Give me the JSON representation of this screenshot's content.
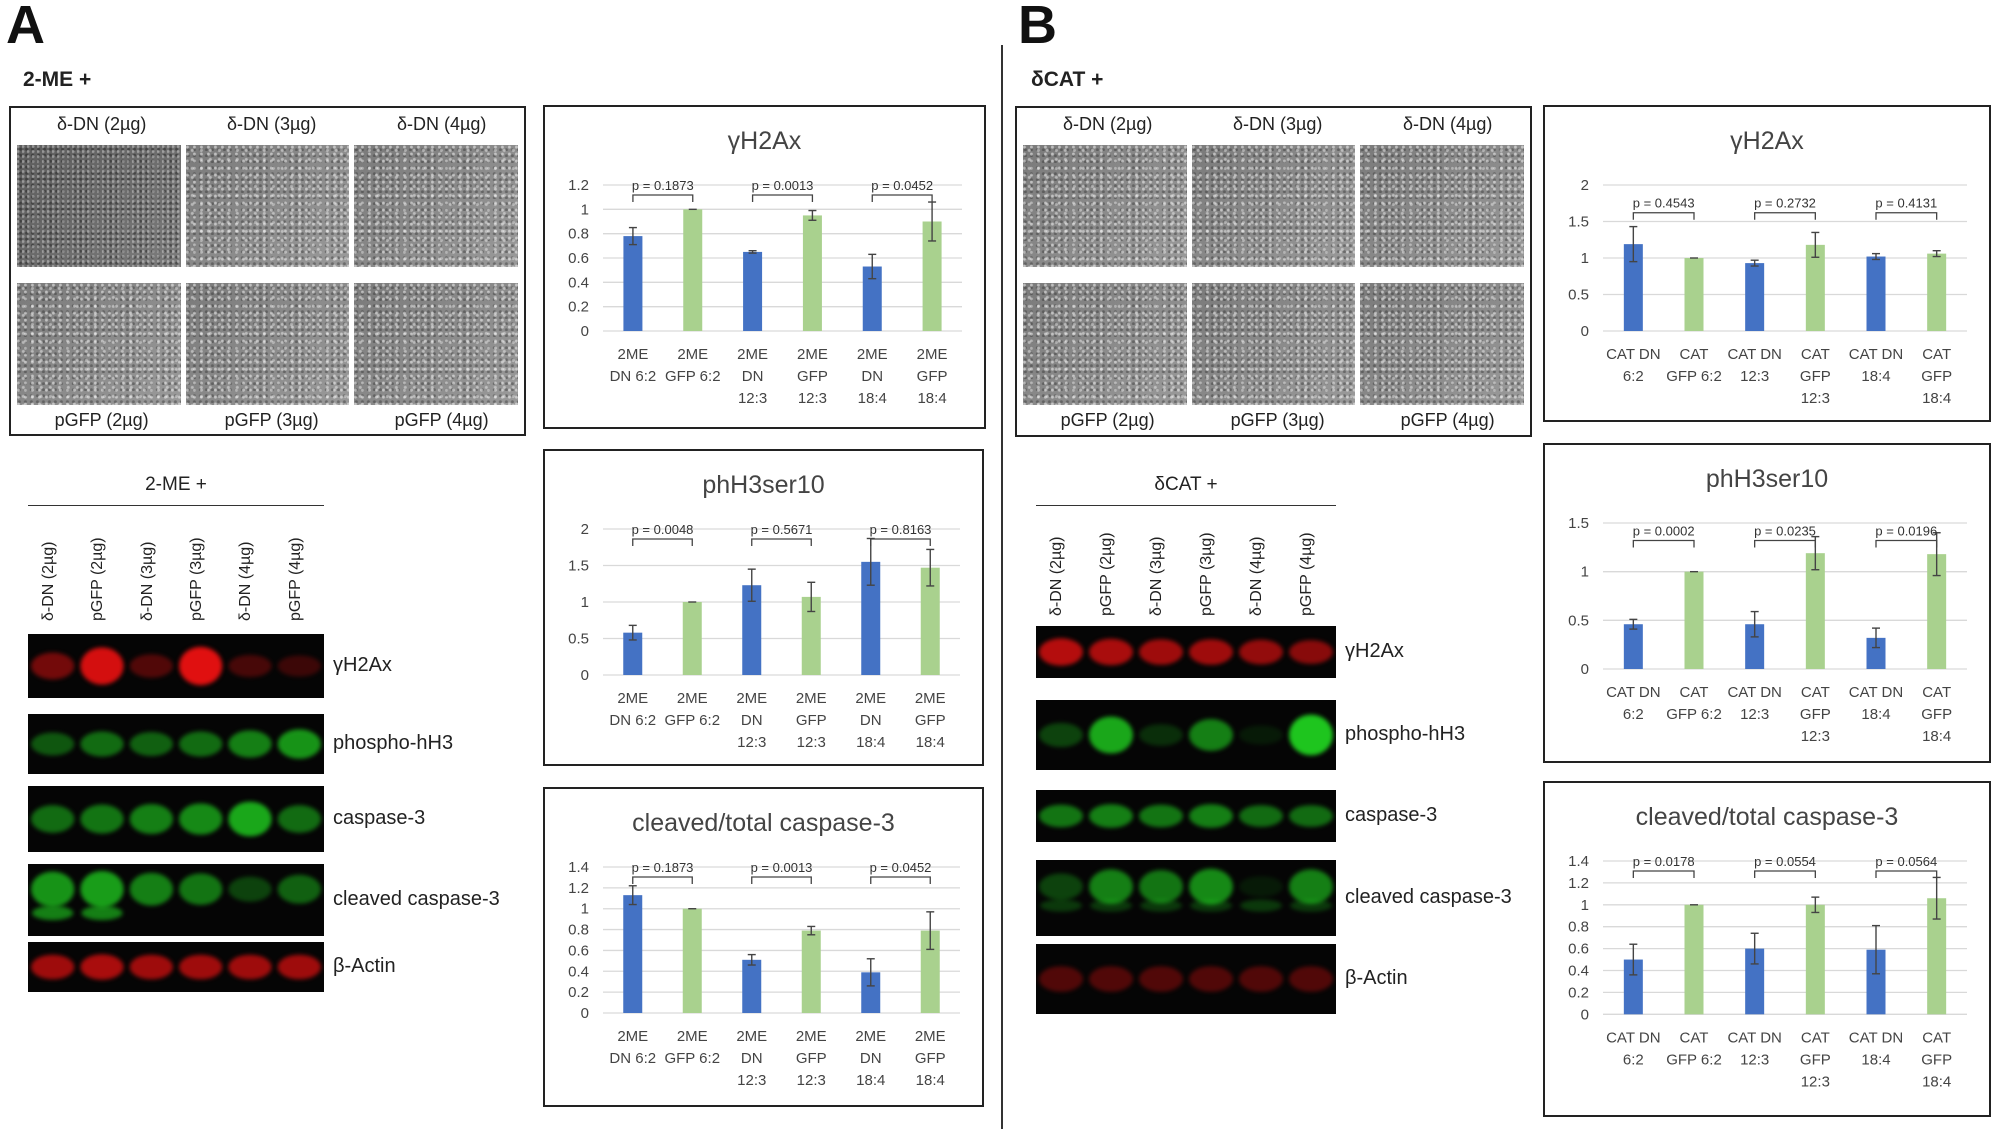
{
  "panels": {
    "A": {
      "letter": "A",
      "condition": "2-ME +",
      "micrographs": {
        "top": [
          "δ-DN (2µg)",
          "δ-DN (3µg)",
          "δ-DN (4µg)"
        ],
        "bottom": [
          "pGFP (2µg)",
          "pGFP (3µg)",
          "pGFP (4µg)"
        ]
      },
      "blot": {
        "header": "2-ME +",
        "lanes": [
          "δ-DN (2µg)",
          "pGFP (2µg)",
          "δ-DN (3µg)",
          "pGFP (3µg)",
          "δ-DN (4µg)",
          "pGFP (4µg)"
        ],
        "rows": [
          "γH2Ax",
          "phospho-hH3",
          "caspase-3",
          "cleaved caspase-3",
          "β-Actin"
        ]
      }
    },
    "B": {
      "letter": "B",
      "condition": "δCAT +",
      "micrographs": {
        "top": [
          "δ-DN (2µg)",
          "δ-DN (3µg)",
          "δ-DN (4µg)"
        ],
        "bottom": [
          "pGFP (2µg)",
          "pGFP (3µg)",
          "pGFP (4µg)"
        ]
      },
      "blot": {
        "header": "δCAT +",
        "lanes": [
          "δ-DN (2µg)",
          "pGFP (2µg)",
          "δ-DN (3µg)",
          "pGFP (3µg)",
          "δ-DN (4µg)",
          "pGFP (4µg)"
        ],
        "rows": [
          "γH2Ax",
          "phospho-hH3",
          "caspase-3",
          "cleaved caspase-3",
          "β-Actin"
        ]
      }
    }
  },
  "colors": {
    "dn": "#4472C4",
    "gfp": "#A9D18E",
    "red_channel": "#e01010",
    "green_channel": "#20d020"
  },
  "chart_data": [
    {
      "type": "bar",
      "panel": "A",
      "title": "γH2Ax",
      "categories": [
        [
          "2ME",
          "DN 6:2"
        ],
        [
          "2ME",
          "GFP 6:2"
        ],
        [
          "2ME",
          "DN",
          "12:3"
        ],
        [
          "2ME",
          "GFP",
          "12:3"
        ],
        [
          "2ME",
          "DN",
          "18:4"
        ],
        [
          "2ME",
          "GFP",
          "18:4"
        ]
      ],
      "values": [
        0.78,
        1.0,
        0.65,
        0.95,
        0.53,
        0.9
      ],
      "errors": [
        0.07,
        0,
        0.01,
        0.04,
        0.1,
        0.16
      ],
      "ylim": [
        0,
        1.2
      ],
      "yticks": [
        "0",
        "0.2",
        "0.4",
        "0.6",
        "0.8",
        "1",
        "1.2"
      ],
      "grid": true,
      "pvalues": [
        "p = 0.1873",
        "p = 0.0013",
        "p = 0.0452"
      ]
    },
    {
      "type": "bar",
      "panel": "A",
      "title": "phH3ser10",
      "categories": [
        [
          "2ME",
          "DN 6:2"
        ],
        [
          "2ME",
          "GFP 6:2"
        ],
        [
          "2ME",
          "DN",
          "12:3"
        ],
        [
          "2ME",
          "GFP",
          "12:3"
        ],
        [
          "2ME",
          "DN",
          "18:4"
        ],
        [
          "2ME",
          "GFP",
          "18:4"
        ]
      ],
      "values": [
        0.58,
        1.0,
        1.23,
        1.07,
        1.55,
        1.47
      ],
      "errors": [
        0.1,
        0,
        0.22,
        0.2,
        0.32,
        0.25
      ],
      "ylim": [
        0,
        2
      ],
      "yticks": [
        "0",
        "0.5",
        "1",
        "1.5",
        "2"
      ],
      "grid": true,
      "pvalues": [
        "p = 0.0048",
        "p = 0.5671",
        "p = 0.8163"
      ]
    },
    {
      "type": "bar",
      "panel": "A",
      "title": "cleaved/total caspase-3",
      "categories": [
        [
          "2ME",
          "DN 6:2"
        ],
        [
          "2ME",
          "GFP 6:2"
        ],
        [
          "2ME",
          "DN",
          "12:3"
        ],
        [
          "2ME",
          "GFP",
          "12:3"
        ],
        [
          "2ME",
          "DN",
          "18:4"
        ],
        [
          "2ME",
          "GFP",
          "18:4"
        ]
      ],
      "values": [
        1.13,
        1.0,
        0.51,
        0.79,
        0.39,
        0.79
      ],
      "errors": [
        0.09,
        0,
        0.05,
        0.04,
        0.13,
        0.18
      ],
      "ylim": [
        0,
        1.4
      ],
      "yticks": [
        "0",
        "0.2",
        "0.4",
        "0.6",
        "0.8",
        "1",
        "1.2",
        "1.4"
      ],
      "grid": true,
      "pvalues": [
        "p = 0.1873",
        "p = 0.0013",
        "p = 0.0452"
      ]
    },
    {
      "type": "bar",
      "panel": "B",
      "title": "γH2Ax",
      "categories": [
        [
          "CAT DN",
          "6:2"
        ],
        [
          "CAT",
          "GFP 6:2"
        ],
        [
          "CAT DN",
          "12:3"
        ],
        [
          "CAT",
          "GFP",
          "12:3"
        ],
        [
          "CAT DN",
          "18:4"
        ],
        [
          "CAT",
          "GFP",
          "18:4"
        ]
      ],
      "values": [
        1.19,
        1.0,
        0.93,
        1.18,
        1.02,
        1.06
      ],
      "errors": [
        0.24,
        0,
        0.04,
        0.17,
        0.04,
        0.04
      ],
      "ylim": [
        0,
        2
      ],
      "yticks": [
        "0",
        "0.5",
        "1",
        "1.5",
        "2"
      ],
      "grid": true,
      "pvalues": [
        "p = 0.4543",
        "p = 0.2732",
        "p = 0.4131"
      ]
    },
    {
      "type": "bar",
      "panel": "B",
      "title": "phH3ser10",
      "categories": [
        [
          "CAT DN",
          "6:2"
        ],
        [
          "CAT",
          "GFP 6:2"
        ],
        [
          "CAT DN",
          "12:3"
        ],
        [
          "CAT",
          "GFP",
          "12:3"
        ],
        [
          "CAT DN",
          "18:4"
        ],
        [
          "CAT",
          "GFP",
          "18:4"
        ]
      ],
      "values": [
        0.46,
        1.0,
        0.46,
        1.19,
        0.32,
        1.18
      ],
      "errors": [
        0.05,
        0,
        0.13,
        0.17,
        0.1,
        0.22
      ],
      "ylim": [
        0,
        1.5
      ],
      "yticks": [
        "0",
        "0.5",
        "1",
        "1.5"
      ],
      "grid": true,
      "pvalues": [
        "p = 0.0002",
        "p = 0.0235",
        "p = 0.0196"
      ]
    },
    {
      "type": "bar",
      "panel": "B",
      "title": "cleaved/total caspase-3",
      "categories": [
        [
          "CAT DN",
          "6:2"
        ],
        [
          "CAT",
          "GFP 6:2"
        ],
        [
          "CAT DN",
          "12:3"
        ],
        [
          "CAT",
          "GFP",
          "12:3"
        ],
        [
          "CAT DN",
          "18:4"
        ],
        [
          "CAT",
          "GFP",
          "18:4"
        ]
      ],
      "values": [
        0.5,
        1.0,
        0.6,
        1.0,
        0.59,
        1.06
      ],
      "errors": [
        0.14,
        0,
        0.14,
        0.07,
        0.22,
        0.19
      ],
      "ylim": [
        0,
        1.4
      ],
      "yticks": [
        "0",
        "0.2",
        "0.4",
        "0.6",
        "0.8",
        "1",
        "1.2",
        "1.4"
      ],
      "grid": true,
      "pvalues": [
        "p = 0.0178",
        "p = 0.0554",
        "p = 0.0564"
      ]
    }
  ]
}
